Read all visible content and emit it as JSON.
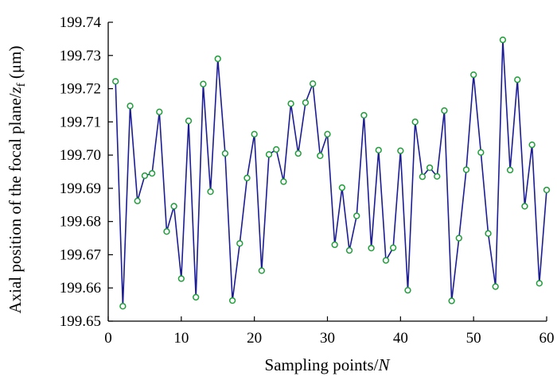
{
  "chart_data": {
    "type": "line",
    "xlabel": "Sampling points/",
    "xlabel_italic": "N",
    "ylabel": "Axial position of the focal plane/",
    "ylabel_var": "z",
    "ylabel_sub": "f",
    "ylabel_unit": " (μm)",
    "xlim": [
      0,
      60
    ],
    "ylim": [
      199.65,
      199.74
    ],
    "xticks": [
      0,
      10,
      20,
      30,
      40,
      50,
      60
    ],
    "yticks": [
      199.65,
      199.66,
      199.67,
      199.68,
      199.69,
      199.7,
      199.71,
      199.72,
      199.73,
      199.74
    ],
    "line_color": "#1c1c94",
    "marker_color": "#1f9e3a",
    "grid": false,
    "series": [
      {
        "x": [
          1,
          2,
          3,
          4,
          5,
          6,
          7,
          8,
          9,
          10,
          11,
          12,
          13,
          14,
          15,
          16,
          17,
          18,
          19,
          20,
          21,
          22,
          23,
          24,
          25,
          26,
          27,
          28,
          29,
          30,
          31,
          32,
          33,
          34,
          35,
          36,
          37,
          38,
          39,
          40,
          41,
          42,
          43,
          44,
          45,
          46,
          47,
          48,
          49,
          50,
          51,
          52,
          53,
          54,
          55,
          56,
          57,
          58,
          59,
          60
        ],
        "y": [
          199.7222,
          199.6545,
          199.7148,
          199.6862,
          199.6938,
          199.6945,
          199.713,
          199.677,
          199.6846,
          199.6628,
          199.7103,
          199.6572,
          199.7214,
          199.689,
          199.729,
          199.7005,
          199.6562,
          199.6734,
          199.6931,
          199.7063,
          199.6652,
          199.7002,
          199.7017,
          199.692,
          199.7155,
          199.7005,
          199.7158,
          199.7215,
          199.6998,
          199.7063,
          199.673,
          199.6902,
          199.6713,
          199.6817,
          199.712,
          199.672,
          199.7015,
          199.6683,
          199.6721,
          199.7013,
          199.6593,
          199.71,
          199.6935,
          199.6962,
          199.6936,
          199.7134,
          199.6561,
          199.675,
          199.6956,
          199.7242,
          199.7008,
          199.6764,
          199.6604,
          199.7347,
          199.6955,
          199.7227,
          199.6846,
          199.7031,
          199.6614,
          199.6895
        ]
      }
    ]
  }
}
